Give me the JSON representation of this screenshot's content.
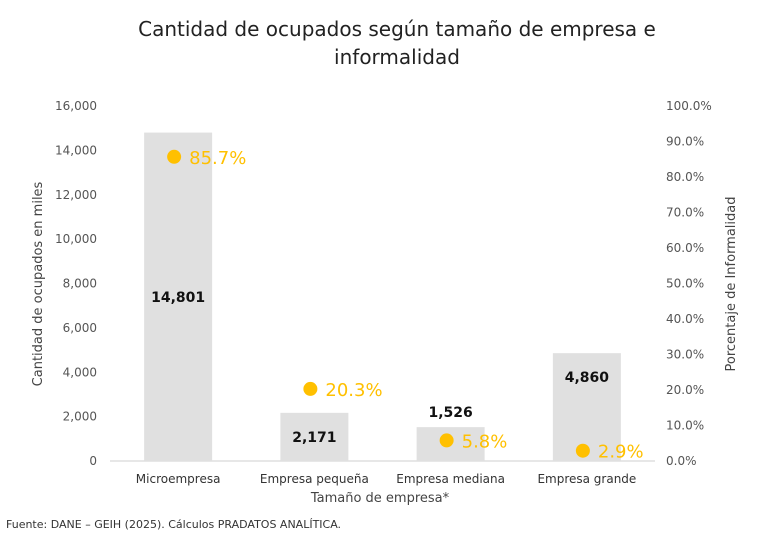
{
  "chart_data": {
    "type": "bar",
    "title_lines": [
      "Cantidad de ocupados según tamaño de empresa e",
      "informalidad"
    ],
    "categories": [
      "Microempresa",
      "Empresa pequeña",
      "Empresa mediana",
      "Empresa grande"
    ],
    "series": [
      {
        "name": "Cantidad de ocupados",
        "axis": "left",
        "values": [
          14801,
          2171,
          1526,
          4860
        ],
        "labels": [
          "14,801",
          "2,171",
          "1,526",
          "4,860"
        ],
        "color": "#E0E0E0"
      },
      {
        "name": "Porcentaje de Informalidad",
        "axis": "right",
        "type": "scatter",
        "values": [
          85.7,
          20.3,
          5.8,
          2.9
        ],
        "labels": [
          "85.7%",
          "20.3%",
          "5.8%",
          "2.9%"
        ],
        "color": "#FFC000"
      }
    ],
    "xlabel": "Tamaño de empresa*",
    "ylabel": "Cantidad de ocupados en miles",
    "y2label": "Porcentaje de Informalidad",
    "ylim": [
      0,
      16000
    ],
    "y2lim": [
      0,
      100
    ],
    "yticks": [
      "0",
      "2,000",
      "4,000",
      "6,000",
      "8,000",
      "10,000",
      "12,000",
      "14,000",
      "16,000"
    ],
    "y2ticks": [
      "0.0%",
      "10.0%",
      "20.0%",
      "30.0%",
      "40.0%",
      "50.0%",
      "60.0%",
      "70.0%",
      "80.0%",
      "90.0%",
      "100.0%"
    ],
    "grid": false
  },
  "footer": {
    "source": "Fuente: DANE – GEIH (2025). Cálculos PRADATOS ANALÍTICA."
  }
}
